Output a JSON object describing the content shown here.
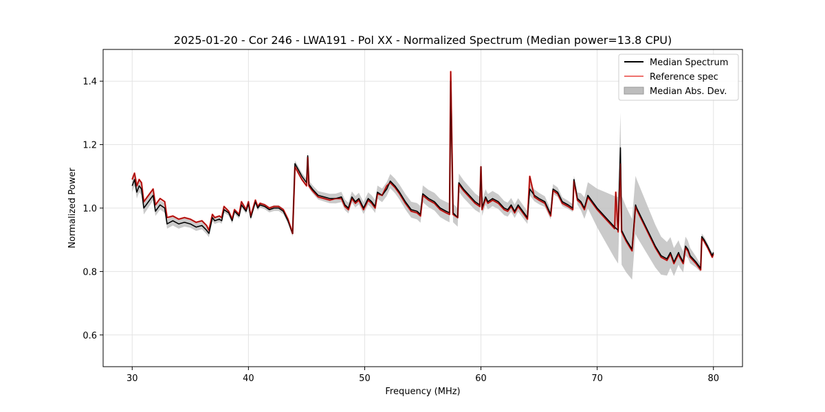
{
  "chart_data": {
    "type": "line",
    "title": "2025-01-20 - Cor 246 - LWA191 - Pol XX - Normalized Spectrum (Median power=13.8 CPU)",
    "xlabel": "Frequency (MHz)",
    "ylabel": "Normalized Power",
    "xlim": [
      27.5,
      82.5
    ],
    "ylim": [
      0.5,
      1.5
    ],
    "xticks": [
      30,
      40,
      50,
      60,
      70,
      80
    ],
    "yticks": [
      0.6,
      0.8,
      1.0,
      1.2,
      1.4
    ],
    "xtick_labels": [
      "30",
      "40",
      "50",
      "60",
      "70",
      "80"
    ],
    "ytick_labels": [
      "0.6",
      "0.8",
      "1.0",
      "1.2",
      "1.4"
    ],
    "grid": true,
    "legend_position": "top-right",
    "legend": [
      "Median Spectrum",
      "Reference spec",
      "Median Abs. Dev."
    ],
    "colors": {
      "median": "#000000",
      "reference": "#e8413c",
      "mad": "#bdbdbd"
    },
    "series": [
      {
        "name": "Median Spectrum",
        "x": [
          30.0,
          30.2,
          30.4,
          30.6,
          30.8,
          31.0,
          31.4,
          31.8,
          32.0,
          32.4,
          32.8,
          33.0,
          33.5,
          34.0,
          34.5,
          35.0,
          35.5,
          36.0,
          36.4,
          36.6,
          36.9,
          37.1,
          37.5,
          37.7,
          37.9,
          38.3,
          38.6,
          38.8,
          39.2,
          39.4,
          39.8,
          40.0,
          40.2,
          40.6,
          40.8,
          41.0,
          41.4,
          41.8,
          42.2,
          42.6,
          43.0,
          43.4,
          43.8,
          44.0,
          44.3,
          44.6,
          45.0,
          45.1,
          45.2,
          45.5,
          46.0,
          46.5,
          47.0,
          47.5,
          48.0,
          48.3,
          48.6,
          48.9,
          49.2,
          49.5,
          49.9,
          50.3,
          50.6,
          50.9,
          51.1,
          51.5,
          51.9,
          52.2,
          52.6,
          53.0,
          53.5,
          54.0,
          54.5,
          54.8,
          55.0,
          55.5,
          56.0,
          56.5,
          57.0,
          57.3,
          57.4,
          57.6,
          58.0,
          58.1,
          58.5,
          59.0,
          59.5,
          59.9,
          60.0,
          60.1,
          60.4,
          60.6,
          61.0,
          61.5,
          62.0,
          62.3,
          62.6,
          62.9,
          63.2,
          63.6,
          64.0,
          64.2,
          64.6,
          65.0,
          65.5,
          66.0,
          66.2,
          66.6,
          67.0,
          67.5,
          67.9,
          68.0,
          68.3,
          68.6,
          68.9,
          69.2,
          69.6,
          70.0,
          70.5,
          71.0,
          71.5,
          71.8,
          72.0,
          72.1,
          72.5,
          73.0,
          73.3,
          73.4,
          73.8,
          74.2,
          74.6,
          75.0,
          75.5,
          76.0,
          76.3,
          76.6,
          77.0,
          77.1,
          77.4,
          77.6,
          77.8,
          78.0,
          78.5,
          78.9,
          79.0,
          79.2,
          79.5,
          79.9,
          80.0
        ],
        "y": [
          1.07,
          1.09,
          1.05,
          1.07,
          1.06,
          1.0,
          1.02,
          1.04,
          0.99,
          1.01,
          1.0,
          0.95,
          0.96,
          0.95,
          0.955,
          0.95,
          0.94,
          0.945,
          0.93,
          0.92,
          0.97,
          0.96,
          0.965,
          0.96,
          0.995,
          0.985,
          0.96,
          0.99,
          0.975,
          1.01,
          0.99,
          1.015,
          0.97,
          1.02,
          1.0,
          1.01,
          1.005,
          0.995,
          1.0,
          1.0,
          0.99,
          0.96,
          0.92,
          1.14,
          1.12,
          1.1,
          1.08,
          1.165,
          1.075,
          1.06,
          1.04,
          1.035,
          1.03,
          1.03,
          1.035,
          1.01,
          1.0,
          1.035,
          1.02,
          1.03,
          1.0,
          1.03,
          1.02,
          1.005,
          1.05,
          1.04,
          1.06,
          1.085,
          1.07,
          1.05,
          1.02,
          0.995,
          0.99,
          0.98,
          1.045,
          1.03,
          1.02,
          1.0,
          0.99,
          0.985,
          1.4,
          0.985,
          0.97,
          1.08,
          1.06,
          1.04,
          1.02,
          1.01,
          1.13,
          1.0,
          1.035,
          1.02,
          1.03,
          1.02,
          1.0,
          0.995,
          1.01,
          0.99,
          1.01,
          0.99,
          0.97,
          1.06,
          1.04,
          1.03,
          1.02,
          0.98,
          1.06,
          1.05,
          1.02,
          1.01,
          1.0,
          1.09,
          1.03,
          1.02,
          1.0,
          1.04,
          1.02,
          1.0,
          0.98,
          0.96,
          0.94,
          0.93,
          1.19,
          0.93,
          0.9,
          0.87,
          1.01,
          1.0,
          0.97,
          0.94,
          0.91,
          0.88,
          0.85,
          0.84,
          0.86,
          0.83,
          0.86,
          0.85,
          0.83,
          0.88,
          0.87,
          0.85,
          0.83,
          0.81,
          0.91,
          0.9,
          0.88,
          0.85,
          0.86
        ]
      },
      {
        "name": "Reference spec",
        "x": [
          30.0,
          30.2,
          30.4,
          30.6,
          30.8,
          31.0,
          31.4,
          31.8,
          32.0,
          32.4,
          32.8,
          33.0,
          33.5,
          34.0,
          34.5,
          35.0,
          35.5,
          36.0,
          36.4,
          36.6,
          36.9,
          37.1,
          37.5,
          37.7,
          37.9,
          38.3,
          38.6,
          38.8,
          39.2,
          39.4,
          39.8,
          40.0,
          40.2,
          40.6,
          40.8,
          41.0,
          41.4,
          41.8,
          42.2,
          42.6,
          43.0,
          43.4,
          43.8,
          44.0,
          44.3,
          44.6,
          45.0,
          45.1,
          45.2,
          45.5,
          46.0,
          46.5,
          47.0,
          47.5,
          48.0,
          48.3,
          48.6,
          48.9,
          49.2,
          49.5,
          49.9,
          50.3,
          50.6,
          50.9,
          51.1,
          51.5,
          51.9,
          52.2,
          52.6,
          53.0,
          53.5,
          54.0,
          54.5,
          54.8,
          55.0,
          55.5,
          56.0,
          56.5,
          57.0,
          57.3,
          57.4,
          57.6,
          58.0,
          58.1,
          58.5,
          59.0,
          59.5,
          59.9,
          60.0,
          60.1,
          60.4,
          60.6,
          61.0,
          61.5,
          62.0,
          62.3,
          62.6,
          62.9,
          63.2,
          63.6,
          64.0,
          64.2,
          64.6,
          65.0,
          65.5,
          66.0,
          66.2,
          66.6,
          67.0,
          67.5,
          67.9,
          68.0,
          68.3,
          68.6,
          68.9,
          69.2,
          69.6,
          70.0,
          70.5,
          71.0,
          71.5,
          71.6,
          71.8,
          72.0,
          72.1,
          72.5,
          73.0,
          73.3,
          73.4,
          73.8,
          74.2,
          74.6,
          75.0,
          75.5,
          76.0,
          76.3,
          76.6,
          77.0,
          77.1,
          77.4,
          77.6,
          77.8,
          78.0,
          78.5,
          78.9,
          79.0,
          79.2,
          79.5,
          79.9,
          80.0
        ],
        "y": [
          1.09,
          1.11,
          1.07,
          1.09,
          1.08,
          1.02,
          1.04,
          1.06,
          1.01,
          1.03,
          1.02,
          0.97,
          0.975,
          0.965,
          0.97,
          0.965,
          0.955,
          0.96,
          0.945,
          0.93,
          0.98,
          0.97,
          0.975,
          0.97,
          1.005,
          0.99,
          0.965,
          0.995,
          0.98,
          1.02,
          0.995,
          1.02,
          0.975,
          1.025,
          1.005,
          1.015,
          1.01,
          1.0,
          1.005,
          1.005,
          0.995,
          0.965,
          0.92,
          1.13,
          1.11,
          1.09,
          1.07,
          1.16,
          1.07,
          1.055,
          1.035,
          1.03,
          1.025,
          1.03,
          1.03,
          1.005,
          0.995,
          1.03,
          1.015,
          1.025,
          0.995,
          1.025,
          1.015,
          1.0,
          1.045,
          1.04,
          1.07,
          1.08,
          1.065,
          1.045,
          1.015,
          0.99,
          0.985,
          0.975,
          1.04,
          1.025,
          1.015,
          0.995,
          0.985,
          0.98,
          1.43,
          0.98,
          0.97,
          1.075,
          1.055,
          1.035,
          1.015,
          1.005,
          1.13,
          0.995,
          1.03,
          1.015,
          1.025,
          1.015,
          0.995,
          0.99,
          1.005,
          0.985,
          1.005,
          0.985,
          0.965,
          1.1,
          1.035,
          1.025,
          1.015,
          0.975,
          1.055,
          1.045,
          1.015,
          1.005,
          0.995,
          1.085,
          1.025,
          1.015,
          0.995,
          1.035,
          1.015,
          0.995,
          0.975,
          0.955,
          0.935,
          1.05,
          0.925,
          1.14,
          0.925,
          0.895,
          0.865,
          1.005,
          0.995,
          0.965,
          0.935,
          0.905,
          0.875,
          0.845,
          0.835,
          0.855,
          0.825,
          0.855,
          0.845,
          0.825,
          0.875,
          0.865,
          0.845,
          0.825,
          0.805,
          0.905,
          0.895,
          0.875,
          0.845,
          0.855
        ]
      }
    ],
    "mad_band": {
      "name": "Median Abs. Dev.",
      "x": [
        30.0,
        31.0,
        32.0,
        33.0,
        34.0,
        35.0,
        36.0,
        36.6,
        37.0,
        40.0,
        44.0,
        45.1,
        57.4,
        60.0,
        64.0,
        68.0,
        72.0,
        79.0,
        80.0
      ],
      "halfwidth": [
        0.02,
        0.02,
        0.015,
        0.015,
        0.015,
        0.012,
        0.012,
        0.012,
        0.01,
        0.008,
        0.01,
        0.012,
        0.03,
        0.025,
        0.02,
        0.012,
        0.11,
        0.01,
        0.008
      ]
    }
  }
}
